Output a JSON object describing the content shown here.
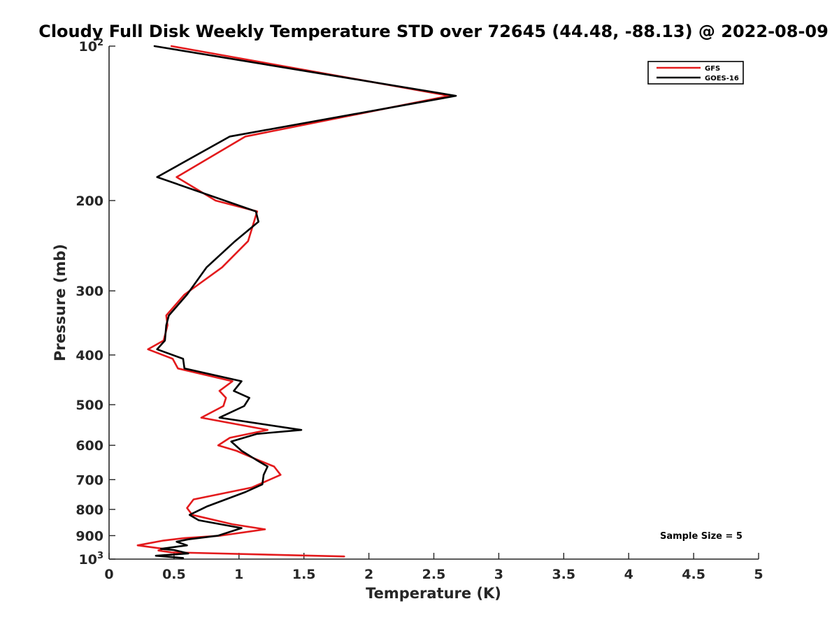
{
  "chart_data": {
    "type": "line",
    "title": "Cloudy Full Disk Weekly Temperature STD over 72645 (44.48, -88.13) @ 2022-08-09",
    "xlabel": "Temperature (K)",
    "ylabel": "Pressure (mb)",
    "xlim": [
      0,
      5
    ],
    "ylim": [
      100,
      1000
    ],
    "y_scale": "log",
    "y_reversed": true,
    "x_ticks": [
      "0",
      "0.5",
      "1",
      "1.5",
      "2",
      "2.5",
      "3",
      "3.5",
      "4",
      "4.5",
      "5"
    ],
    "y_ticks": [
      {
        "value": 100,
        "base": "10",
        "exp": "2"
      },
      {
        "value": 200,
        "label": "200"
      },
      {
        "value": 300,
        "label": "300"
      },
      {
        "value": 400,
        "label": "400"
      },
      {
        "value": 500,
        "label": "500"
      },
      {
        "value": 600,
        "label": "600"
      },
      {
        "value": 700,
        "label": "700"
      },
      {
        "value": 800,
        "label": "800"
      },
      {
        "value": 900,
        "label": "900"
      },
      {
        "value": 1000,
        "base": "10",
        "exp": "3"
      }
    ],
    "legend_position": "top-right",
    "grid": false,
    "series": [
      {
        "name": "GFS",
        "color": "#e31a1c",
        "points": [
          [
            0.48,
            100
          ],
          [
            2.62,
            125
          ],
          [
            1.05,
            150
          ],
          [
            0.52,
            180
          ],
          [
            0.82,
            200
          ],
          [
            1.14,
            210
          ],
          [
            1.07,
            240
          ],
          [
            0.87,
            270
          ],
          [
            0.58,
            305
          ],
          [
            0.44,
            335
          ],
          [
            0.45,
            350
          ],
          [
            0.42,
            375
          ],
          [
            0.3,
            390
          ],
          [
            0.49,
            407
          ],
          [
            0.53,
            425
          ],
          [
            0.95,
            450
          ],
          [
            0.85,
            470
          ],
          [
            0.9,
            485
          ],
          [
            0.88,
            503
          ],
          [
            0.71,
            530
          ],
          [
            1.22,
            560
          ],
          [
            0.93,
            580
          ],
          [
            0.84,
            600
          ],
          [
            0.98,
            615
          ],
          [
            1.14,
            640
          ],
          [
            1.27,
            660
          ],
          [
            1.32,
            685
          ],
          [
            1.1,
            725
          ],
          [
            0.65,
            765
          ],
          [
            0.6,
            795
          ],
          [
            0.64,
            820
          ],
          [
            0.95,
            855
          ],
          [
            1.2,
            875
          ],
          [
            0.86,
            900
          ],
          [
            0.58,
            910
          ],
          [
            0.42,
            920
          ],
          [
            0.22,
            940
          ],
          [
            0.42,
            955
          ],
          [
            0.38,
            962
          ],
          [
            0.48,
            970
          ],
          [
            1.81,
            988
          ]
        ]
      },
      {
        "name": "GOES-16",
        "color": "#000000",
        "points": [
          [
            0.35,
            100
          ],
          [
            2.67,
            125
          ],
          [
            0.93,
            150
          ],
          [
            0.37,
            180
          ],
          [
            1.13,
            210
          ],
          [
            1.15,
            220
          ],
          [
            0.97,
            240
          ],
          [
            0.75,
            270
          ],
          [
            0.6,
            305
          ],
          [
            0.46,
            335
          ],
          [
            0.44,
            350
          ],
          [
            0.43,
            375
          ],
          [
            0.37,
            390
          ],
          [
            0.57,
            407
          ],
          [
            0.58,
            425
          ],
          [
            1.02,
            450
          ],
          [
            0.96,
            470
          ],
          [
            1.08,
            485
          ],
          [
            1.04,
            503
          ],
          [
            0.85,
            530
          ],
          [
            1.48,
            560
          ],
          [
            1.14,
            570
          ],
          [
            0.94,
            590
          ],
          [
            1.02,
            615
          ],
          [
            1.13,
            640
          ],
          [
            1.22,
            660
          ],
          [
            1.19,
            685
          ],
          [
            1.18,
            715
          ],
          [
            1.05,
            740
          ],
          [
            0.75,
            790
          ],
          [
            0.62,
            820
          ],
          [
            0.69,
            840
          ],
          [
            1.02,
            870
          ],
          [
            0.84,
            900
          ],
          [
            0.61,
            915
          ],
          [
            0.52,
            925
          ],
          [
            0.6,
            940
          ],
          [
            0.4,
            955
          ],
          [
            0.5,
            960
          ],
          [
            0.61,
            975
          ],
          [
            0.36,
            985
          ],
          [
            0.57,
            995
          ]
        ]
      }
    ],
    "annotations": [
      "Sample Size = 5"
    ]
  }
}
